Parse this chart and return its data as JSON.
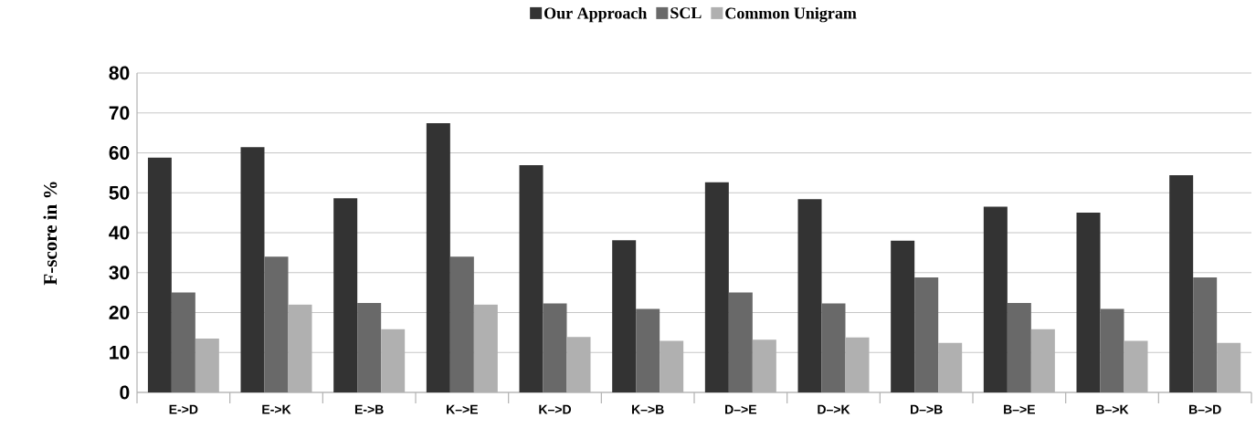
{
  "chart_data": {
    "type": "bar",
    "ylabel": "F-score in %",
    "categories": [
      "E->D",
      "E->K",
      "E->B",
      "K–>E",
      "K–>D",
      "K–>B",
      "D–>E",
      "D–>K",
      "D–>B",
      "B–>E",
      "B–>K",
      "B–>D"
    ],
    "series": [
      {
        "name": "Our Approach",
        "color": "#333333",
        "values": [
          58.8,
          61.4,
          48.6,
          67.4,
          56.9,
          38.1,
          52.6,
          48.4,
          38.0,
          46.5,
          45.0,
          54.4
        ]
      },
      {
        "name": "SCL",
        "color": "#696969",
        "values": [
          25.0,
          34.0,
          22.4,
          34.0,
          22.3,
          20.9,
          25.0,
          22.3,
          28.8,
          22.4,
          20.9,
          28.8
        ]
      },
      {
        "name": "Common Unigram",
        "color": "#b0b0b0",
        "values": [
          13.5,
          22.0,
          15.8,
          22.0,
          13.9,
          12.9,
          13.2,
          13.8,
          12.4,
          15.8,
          12.9,
          12.4
        ]
      }
    ],
    "ylim": [
      0,
      80
    ],
    "yticks": [
      0,
      10,
      20,
      30,
      40,
      50,
      60,
      70,
      80
    ],
    "grid": "y",
    "legend": "top"
  }
}
